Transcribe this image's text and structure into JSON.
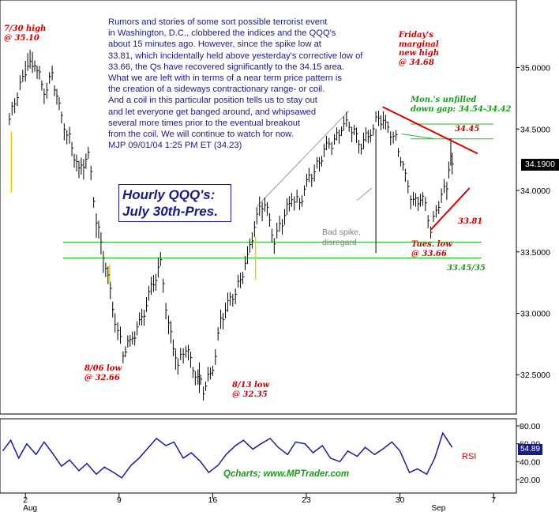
{
  "chart_data": [
    {
      "type": "ohlc",
      "title": "Hourly QQQ's:",
      "subtitle": "July 30th-Pres.",
      "y_ticks": [
        "35.0000",
        "34.5000",
        "34.0000",
        "33.5000",
        "33.0000",
        "32.5000"
      ],
      "y_tick_values": [
        35.0,
        34.5,
        34.0,
        33.5,
        33.0,
        32.5
      ],
      "ylim": [
        32.18,
        35.55
      ],
      "x_ticks": [
        "2",
        "9",
        "16",
        "23",
        "30",
        "7"
      ],
      "x_tick_positions": [
        2,
        9,
        16,
        23,
        30,
        37
      ],
      "x_month_labels": [
        {
          "label": "Aug",
          "at": 2
        },
        {
          "label": "Sep",
          "at": 33
        }
      ],
      "xlim": [
        0.1,
        38.7
      ],
      "last_price": "34.1900",
      "grid": false,
      "series": [
        {
          "points": [
            [
              0.8,
              34.58
            ],
            [
              1.4,
              34.78
            ],
            [
              2.0,
              34.98
            ],
            [
              2.7,
              35.05
            ],
            [
              3.4,
              34.8
            ],
            [
              4.0,
              34.95
            ],
            [
              4.7,
              34.58
            ],
            [
              5.3,
              34.42
            ],
            [
              6.0,
              34.15
            ],
            [
              6.7,
              34.3
            ],
            [
              7.3,
              33.75
            ],
            [
              8.0,
              33.4
            ],
            [
              8.7,
              32.95
            ],
            [
              9.3,
              32.68
            ],
            [
              10.0,
              32.8
            ],
            [
              10.7,
              32.95
            ],
            [
              11.4,
              33.2
            ],
            [
              12.1,
              33.4
            ],
            [
              12.7,
              32.9
            ],
            [
              13.4,
              32.58
            ],
            [
              14.0,
              32.72
            ],
            [
              14.7,
              32.52
            ],
            [
              15.3,
              32.38
            ],
            [
              16.0,
              32.55
            ],
            [
              16.6,
              32.95
            ],
            [
              17.3,
              33.1
            ],
            [
              17.9,
              33.22
            ],
            [
              18.6,
              33.45
            ],
            [
              19.3,
              33.8
            ],
            [
              19.9,
              33.9
            ],
            [
              20.6,
              33.6
            ],
            [
              21.2,
              33.75
            ],
            [
              21.9,
              33.95
            ],
            [
              22.5,
              33.9
            ],
            [
              23.2,
              34.1
            ],
            [
              23.8,
              34.2
            ],
            [
              24.5,
              34.35
            ],
            [
              25.1,
              34.4
            ],
            [
              25.8,
              34.55
            ],
            [
              26.4,
              34.5
            ],
            [
              27.1,
              34.38
            ],
            [
              27.8,
              34.48
            ],
            [
              28.4,
              34.6
            ],
            [
              29.1,
              34.5
            ],
            [
              29.7,
              34.42
            ],
            [
              30.4,
              34.1
            ],
            [
              31.0,
              33.9
            ],
            [
              31.7,
              33.95
            ],
            [
              32.3,
              33.68
            ],
            [
              32.9,
              33.9
            ],
            [
              33.5,
              34.05
            ],
            [
              33.8,
              34.3
            ],
            [
              34.0,
              34.19
            ]
          ],
          "high_offset": [
            0.05,
            0.06,
            0.12,
            0.05,
            0.06,
            0.06,
            0.05,
            0.06,
            0.07,
            0.05,
            0.08,
            0.07,
            0.09,
            0.05,
            0.06,
            0.07,
            0.08,
            0.06,
            0.09,
            0.06,
            0.05,
            0.06,
            0.06,
            0.06,
            0.07,
            0.05,
            0.06,
            0.07,
            0.08,
            0.06,
            0.07,
            0.06,
            0.06,
            0.05,
            0.06,
            0.05,
            0.06,
            0.05,
            0.07,
            0.05,
            0.06,
            0.05,
            0.08,
            0.05,
            0.04,
            0.05,
            0.06,
            0.05,
            0.05,
            0.06,
            0.07,
            0.15,
            0.06
          ],
          "low_offset": [
            0.08,
            0.07,
            0.06,
            0.07,
            0.08,
            0.07,
            0.09,
            0.08,
            0.1,
            0.07,
            0.12,
            0.09,
            0.08,
            0.06,
            0.07,
            0.08,
            0.09,
            0.08,
            0.1,
            0.08,
            0.09,
            0.07,
            0.06,
            0.07,
            0.09,
            0.08,
            0.07,
            0.08,
            0.1,
            0.07,
            0.08,
            0.09,
            0.07,
            0.06,
            0.08,
            0.07,
            0.06,
            0.07,
            0.06,
            0.08,
            0.08,
            0.06,
            0.07,
            0.07,
            0.05,
            0.08,
            0.07,
            0.08,
            0.06,
            0.07,
            0.09,
            0.1,
            0.08
          ]
        }
      ],
      "spikes": [
        {
          "x": 28.2,
          "low": 33.49,
          "high": 34.5
        },
        {
          "x": 15.0,
          "low": 32.35,
          "high": 32.6
        }
      ],
      "support_lines": [
        33.58,
        33.45
      ],
      "gap_lines": [
        34.54,
        34.42
      ],
      "price_labels": {
        "high_730": {
          "label": "7/30 high",
          "value": "@ 35.10"
        },
        "low_806": {
          "label": "8/06 low",
          "value": "@ 32.66"
        },
        "low_813": {
          "label": "8/13 low",
          "value": "@ 32.35"
        },
        "friday_high": {
          "lines": [
            "Friday's",
            "marginal",
            "new high",
            "@ 34.68"
          ]
        },
        "tues_low": {
          "lines": [
            "Tues. low",
            "@ 33.66"
          ]
        },
        "gap": {
          "lines": [
            "Mon.'s unfilled",
            "down gap: 34.54-34.42"
          ]
        },
        "level_3445": "34.45",
        "level_3381": "33.81",
        "level_support": "33.45/35",
        "bad_spike": [
          "Bad spike,",
          "disregard"
        ]
      }
    },
    {
      "type": "line",
      "label": "RSI",
      "current_value": "54.89",
      "y_ticks": [
        "80.00",
        "60.00",
        "40.00",
        "20.00"
      ],
      "y_tick_values": [
        80,
        60,
        40,
        20
      ],
      "ylim": [
        5,
        88
      ],
      "x": [
        0.3,
        0.9,
        1.5,
        2.1,
        2.8,
        3.4,
        4.0,
        4.7,
        5.3,
        6.0,
        6.6,
        7.3,
        7.9,
        8.6,
        9.2,
        9.9,
        10.5,
        11.2,
        11.8,
        12.5,
        13.1,
        13.8,
        14.4,
        15.1,
        15.7,
        16.4,
        17.0,
        17.7,
        18.3,
        19.0,
        19.6,
        20.3,
        20.9,
        21.6,
        22.2,
        22.9,
        23.5,
        24.2,
        24.8,
        25.5,
        26.1,
        26.8,
        27.4,
        28.1,
        28.7,
        29.4,
        30.0,
        30.7,
        31.3,
        32.0,
        32.6,
        33.2,
        33.9
      ],
      "values": [
        52,
        64,
        44,
        60,
        48,
        62,
        50,
        35,
        42,
        30,
        38,
        26,
        34,
        28,
        22,
        36,
        44,
        56,
        66,
        58,
        62,
        44,
        50,
        40,
        28,
        36,
        48,
        58,
        64,
        54,
        60,
        66,
        56,
        48,
        62,
        60,
        50,
        58,
        44,
        40,
        52,
        46,
        56,
        48,
        54,
        62,
        52,
        28,
        32,
        26,
        44,
        72,
        56
      ]
    }
  ],
  "commentary": [
    "Rumors and stories of some sort possible terrorist event",
    "in Washington, D.C., clobbered the indices and the QQQ's",
    "about 15 minutes ago. However, since the spike low at",
    "33.81, which incidentally held above yesterday's corrective low of",
    "33.66, the Qs have recovered significantly to the 34.15 area.",
    "What we are left with in terms of a near term price pattern is",
    "the creation of a sideways contractionary range- or coil.",
    "And a coil in this particular position tells us to stay out",
    "and let everyone get banged around, and whipsawed",
    "several more times prior to the eventual breakout",
    "from the coil. We will continue to watch for now.",
    "MJP 09/01/04  1:25 PM ET (34.23)"
  ],
  "credit": "Qcharts; www.MPTrader.com",
  "colors": {
    "bars": "#000000",
    "support": "#22bb22",
    "trendline": "#dd0000",
    "text_blue": "#1a1a80",
    "label_red": "#cc0000",
    "label_green": "#1a9a1a",
    "rsi_line": "#1a1aa0",
    "yellow_marker": "#e6d200"
  }
}
